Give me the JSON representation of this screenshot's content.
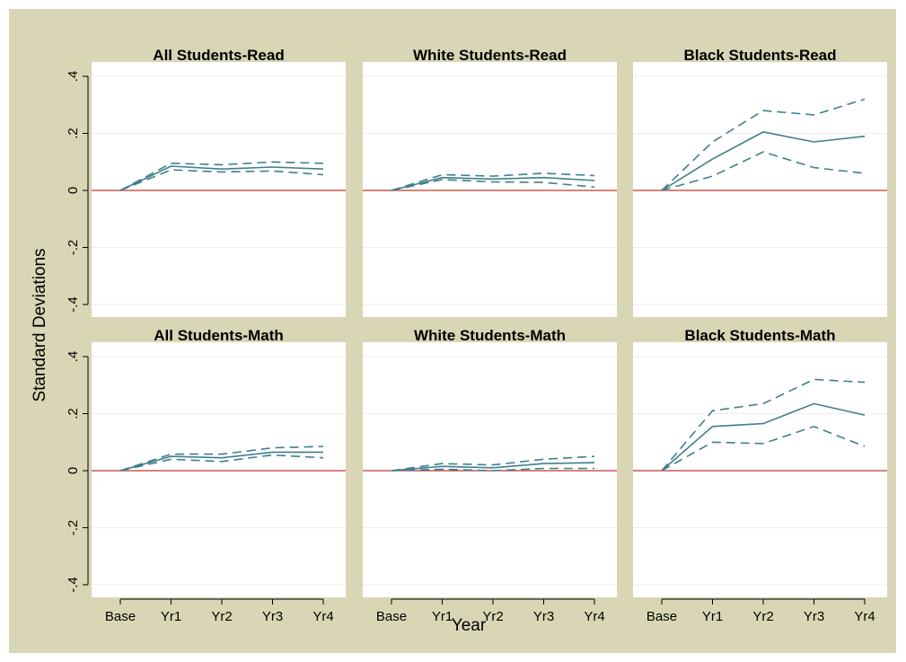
{
  "chart_data": {
    "type": "line",
    "ylabel": "Standard Deviations",
    "xlabel": "Year",
    "categories": [
      "Base",
      "Yr1",
      "Yr2",
      "Yr3",
      "Yr4"
    ],
    "ylim": [
      -0.4,
      0.4
    ],
    "yticks": [
      0.4,
      0.2,
      0,
      -0.2,
      -0.4
    ],
    "ytick_labels": [
      ".4",
      ".2",
      "0",
      "-.2",
      "-.4"
    ],
    "zero_line": 0,
    "grid": true,
    "colors": {
      "estimate": "#3f7f8c",
      "ci": "#3f7f8c",
      "zero": "#c0392b",
      "background": "#d8d6b5",
      "panel": "#ffffff"
    },
    "panels": [
      {
        "title": "All Students-Read",
        "series": [
          {
            "style": "estimate",
            "values": [
              0,
              0.085,
              0.075,
              0.082,
              0.075
            ]
          },
          {
            "style": "upper",
            "values": [
              0,
              0.095,
              0.09,
              0.1,
              0.095
            ]
          },
          {
            "style": "lower",
            "values": [
              0,
              0.072,
              0.065,
              0.068,
              0.055
            ]
          }
        ]
      },
      {
        "title": "White Students-Read",
        "series": [
          {
            "style": "estimate",
            "values": [
              0,
              0.045,
              0.04,
              0.045,
              0.035
            ]
          },
          {
            "style": "upper",
            "values": [
              0,
              0.055,
              0.05,
              0.06,
              0.052
            ]
          },
          {
            "style": "lower",
            "values": [
              0,
              0.038,
              0.03,
              0.028,
              0.012
            ]
          }
        ]
      },
      {
        "title": "Black Students-Read",
        "series": [
          {
            "style": "estimate",
            "values": [
              0,
              0.11,
              0.205,
              0.17,
              0.19
            ]
          },
          {
            "style": "upper",
            "values": [
              0,
              0.17,
              0.28,
              0.265,
              0.32
            ]
          },
          {
            "style": "lower",
            "values": [
              0,
              0.05,
              0.135,
              0.08,
              0.06
            ]
          }
        ]
      },
      {
        "title": "All Students-Math",
        "series": [
          {
            "style": "estimate",
            "values": [
              0,
              0.05,
              0.045,
              0.065,
              0.065
            ]
          },
          {
            "style": "upper",
            "values": [
              0,
              0.058,
              0.058,
              0.08,
              0.085
            ]
          },
          {
            "style": "lower",
            "values": [
              0,
              0.04,
              0.032,
              0.055,
              0.045
            ]
          }
        ]
      },
      {
        "title": "White Students-Math",
        "series": [
          {
            "style": "estimate",
            "values": [
              0,
              0.015,
              0.01,
              0.025,
              0.028
            ]
          },
          {
            "style": "upper",
            "values": [
              0,
              0.025,
              0.02,
              0.04,
              0.05
            ]
          },
          {
            "style": "lower",
            "values": [
              0,
              0.005,
              0.0,
              0.008,
              0.008
            ]
          }
        ]
      },
      {
        "title": "Black Students-Math",
        "series": [
          {
            "style": "estimate",
            "values": [
              0,
              0.155,
              0.165,
              0.235,
              0.195
            ]
          },
          {
            "style": "upper",
            "values": [
              0,
              0.21,
              0.235,
              0.32,
              0.31
            ]
          },
          {
            "style": "lower",
            "values": [
              0,
              0.1,
              0.095,
              0.155,
              0.085
            ]
          }
        ]
      }
    ]
  }
}
